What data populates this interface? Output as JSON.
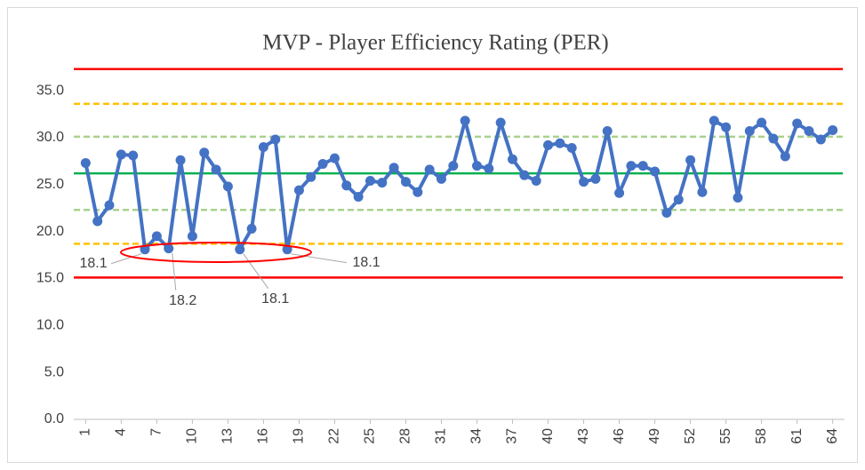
{
  "chart_data": {
    "type": "line",
    "title": "MVP - Player Efficiency Rating (PER)",
    "x": [
      1,
      2,
      3,
      4,
      5,
      6,
      7,
      8,
      9,
      10,
      11,
      12,
      13,
      14,
      15,
      16,
      17,
      18,
      19,
      20,
      21,
      22,
      23,
      24,
      25,
      26,
      27,
      28,
      29,
      30,
      31,
      32,
      33,
      34,
      35,
      36,
      37,
      38,
      39,
      40,
      41,
      42,
      43,
      44,
      45,
      46,
      47,
      48,
      49,
      50,
      51,
      52,
      53,
      54,
      55,
      56,
      57,
      58,
      59,
      60,
      61,
      62,
      63,
      64
    ],
    "xlim": [
      0,
      65
    ],
    "xticks": [
      1,
      4,
      7,
      10,
      13,
      16,
      19,
      22,
      25,
      28,
      31,
      34,
      37,
      40,
      43,
      46,
      49,
      52,
      55,
      58,
      61,
      64
    ],
    "ylim": [
      0,
      38
    ],
    "yticks": [
      {
        "value": 0,
        "label": "0.0"
      },
      {
        "value": 5,
        "label": "5.0"
      },
      {
        "value": 10,
        "label": "10.0"
      },
      {
        "value": 15,
        "label": "15.0"
      },
      {
        "value": 20,
        "label": "20.0"
      },
      {
        "value": 25,
        "label": "25.0"
      },
      {
        "value": 30,
        "label": "30.0"
      },
      {
        "value": 35,
        "label": "35.0"
      }
    ],
    "grid": false,
    "series": [
      {
        "color": "#4472c4",
        "values": [
          27.3,
          21.1,
          22.8,
          28.2,
          28.1,
          18.1,
          19.5,
          18.2,
          27.6,
          19.5,
          28.4,
          26.6,
          24.8,
          18.1,
          20.3,
          29.0,
          29.8,
          18.1,
          24.4,
          25.8,
          27.2,
          27.8,
          24.9,
          23.7,
          25.4,
          25.2,
          26.8,
          25.3,
          24.2,
          26.6,
          25.6,
          27.0,
          31.8,
          27.0,
          26.7,
          31.6,
          27.7,
          26.0,
          25.4,
          29.2,
          29.4,
          28.9,
          25.3,
          25.6,
          30.7,
          24.1,
          27.0,
          27.0,
          26.4,
          22.0,
          23.4,
          27.6,
          24.2,
          31.8,
          31.1,
          23.6,
          30.7,
          31.6,
          29.9,
          28.0,
          31.5,
          30.7,
          29.8,
          30.8
        ],
        "value_labels": [
          null,
          null,
          null,
          null,
          null,
          "18.1",
          null,
          "18.2",
          null,
          null,
          null,
          null,
          null,
          "18.1",
          null,
          null,
          null,
          "18.1",
          null,
          null,
          null,
          null,
          null,
          null,
          null,
          null,
          null,
          null,
          null,
          null,
          null,
          null,
          null,
          null,
          null,
          null,
          null,
          null,
          null,
          null,
          null,
          null,
          null,
          null,
          null,
          null,
          null,
          null,
          null,
          null,
          null,
          null,
          null,
          null,
          null,
          null,
          null,
          null,
          null,
          null,
          null,
          null,
          null,
          null
        ]
      }
    ],
    "reference_lines": [
      {
        "value": 37.3,
        "color": "#ff0000",
        "style": "solid"
      },
      {
        "value": 33.6,
        "color": "#ffc000",
        "style": "dashed"
      },
      {
        "value": 30.1,
        "color": "#a9d18e",
        "style": "dashed"
      },
      {
        "value": 26.2,
        "color": "#00b050",
        "style": "solid"
      },
      {
        "value": 22.3,
        "color": "#a9d18e",
        "style": "dashed"
      },
      {
        "value": 18.7,
        "color": "#ffc000",
        "style": "dashed"
      },
      {
        "value": 15.1,
        "color": "#ff0000",
        "style": "solid"
      }
    ]
  }
}
